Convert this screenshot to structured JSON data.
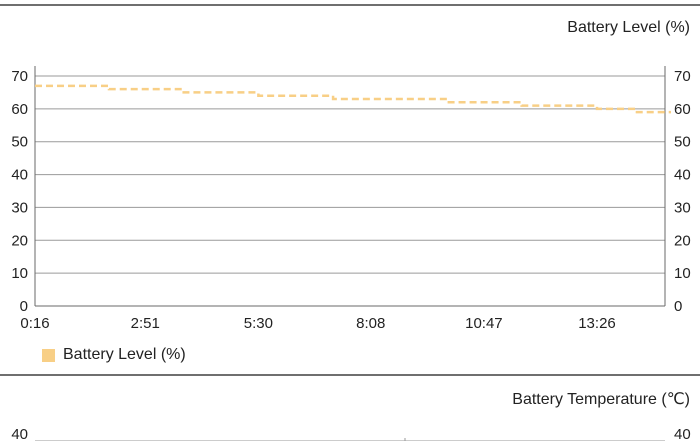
{
  "panels": [
    {
      "title": "Battery Level (%)",
      "legend_label": "Battery Level (%)"
    },
    {
      "title": "Battery Temperature (℃)"
    }
  ],
  "colors": {
    "series": "#f8cf86",
    "grid": "#9a9a9a",
    "axis": "#6a6a6a",
    "rule": "#6f6f6f"
  },
  "chart_data": [
    {
      "type": "line",
      "title": "Battery Level (%)",
      "xlabel": "",
      "ylabel": "Battery Level (%)",
      "ylim": [
        0,
        70
      ],
      "y_ticks": [
        0,
        10,
        20,
        30,
        40,
        50,
        60,
        70
      ],
      "y2_ticks": [
        0,
        10,
        20,
        30,
        40,
        50,
        60,
        70
      ],
      "x_ticks": [
        "0:16",
        "2:51",
        "5:30",
        "8:08",
        "10:47",
        "13:26"
      ],
      "grid": true,
      "legend_position": "bottom-left",
      "series": [
        {
          "name": "Battery Level (%)",
          "style": "dashed",
          "x": [
            "0:16",
            "1:10",
            "2:00",
            "2:51",
            "3:45",
            "4:35",
            "5:30",
            "6:20",
            "7:15",
            "8:08",
            "9:00",
            "9:55",
            "10:47",
            "11:40",
            "12:30",
            "13:26",
            "14:20",
            "15:10"
          ],
          "values": [
            67,
            67,
            66,
            66,
            65,
            65,
            64,
            64,
            63,
            63,
            63,
            62,
            62,
            61,
            61,
            60,
            59,
            59
          ]
        }
      ]
    },
    {
      "type": "line",
      "title": "Battery Temperature (℃)",
      "xlabel": "",
      "ylabel": "Battery Temperature (℃)",
      "y_ticks": [
        40
      ],
      "y2_ticks": [
        40
      ],
      "grid": true,
      "series": []
    }
  ]
}
